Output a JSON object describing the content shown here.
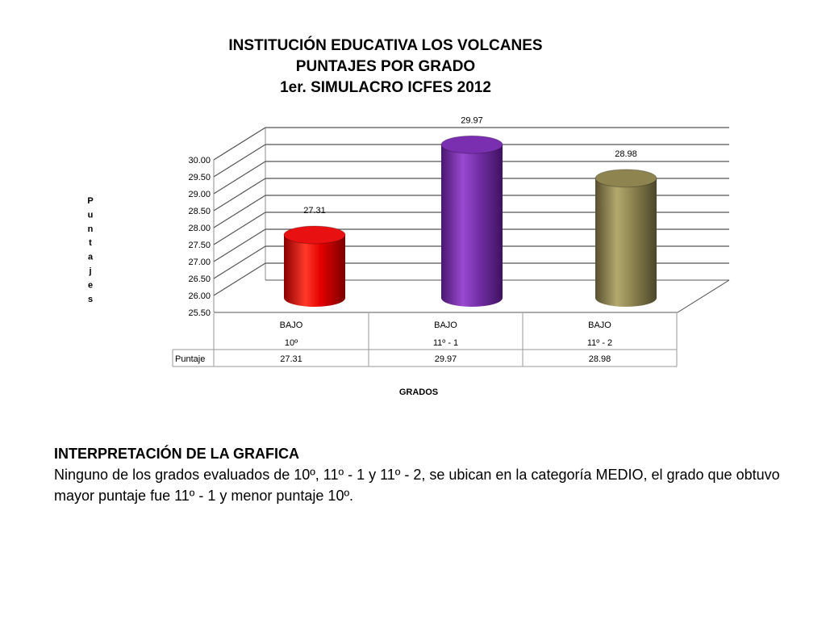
{
  "chart_data": {
    "type": "bar",
    "title": [
      "INSTITUCIÓN EDUCATIVA LOS VOLCANES",
      "PUNTAJES POR GRADO",
      "1er. SIMULACRO ICFES 2012"
    ],
    "xlabel": "GRADOS",
    "ylabel": "Puntajes",
    "categories": [
      {
        "category": "BAJO",
        "grade": "10º"
      },
      {
        "category": "BAJO",
        "grade": "11º - 1"
      },
      {
        "category": "BAJO",
        "grade": "11º - 2"
      }
    ],
    "series": [
      {
        "name": "Puntaje",
        "values": [
          27.31,
          29.97,
          28.98
        ],
        "labels": [
          "27.31",
          "29.97",
          "28.98"
        ]
      }
    ],
    "yticks": [
      "25.50",
      "26.00",
      "26.50",
      "27.00",
      "27.50",
      "28.00",
      "28.50",
      "29.00",
      "29.50",
      "30.00"
    ],
    "ylim": [
      25.5,
      30.0
    ],
    "bar_colors": [
      "#e81010",
      "#7a2fb0",
      "#8d8450"
    ],
    "data_table": true,
    "grid": true
  },
  "interpretation": {
    "title": "INTERPRETACIÓN DE LA GRAFICA",
    "text": "Ninguno de los grados evaluados de 10º, 11º - 1 y 11º - 2, se ubican en la categoría MEDIO, el grado que obtuvo mayor puntaje fue 11º - 1 y menor puntaje 10º."
  }
}
